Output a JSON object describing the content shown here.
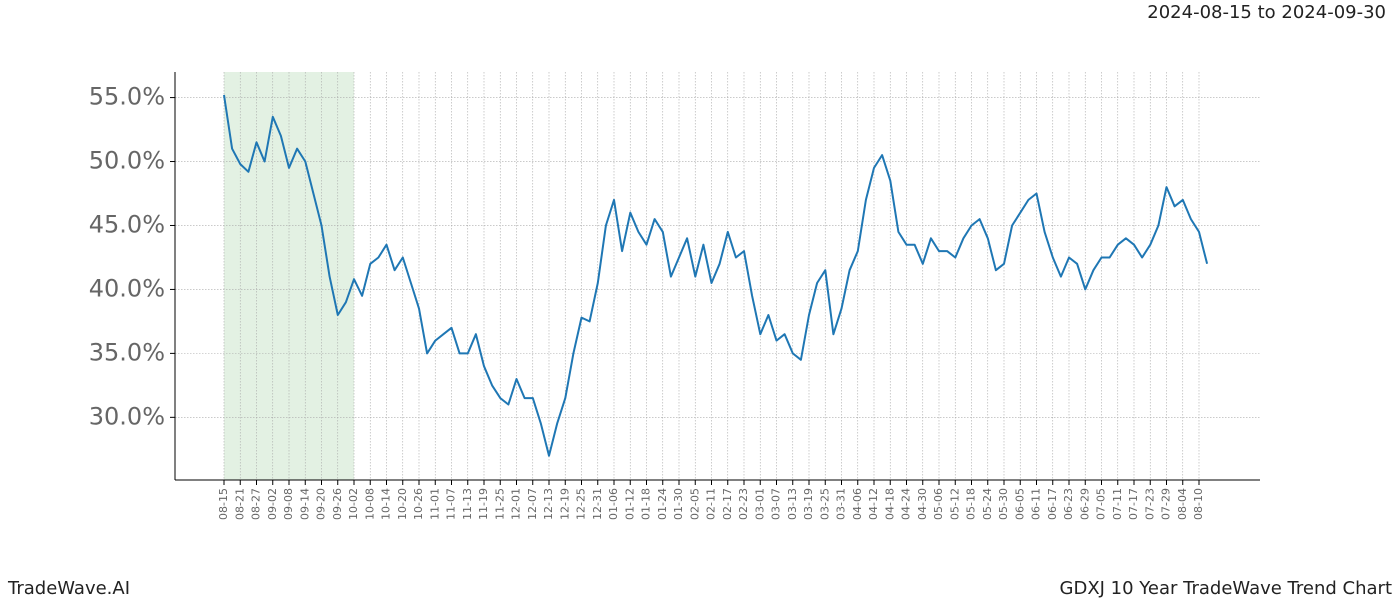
{
  "header": {
    "date_range": "2024-08-15 to 2024-09-30"
  },
  "footer": {
    "brand": "TradeWave.AI",
    "chart_name": "GDXJ 10 Year TradeWave Trend Chart"
  },
  "chart_data": {
    "type": "line",
    "categories": [
      "08-15",
      null,
      "08-21",
      null,
      "08-27",
      null,
      "09-02",
      null,
      "09-08",
      null,
      "09-14",
      null,
      "09-20",
      null,
      "09-26",
      null,
      "10-02",
      null,
      "10-08",
      null,
      "10-14",
      null,
      "10-20",
      null,
      "10-26",
      null,
      "11-01",
      null,
      "11-07",
      null,
      "11-13",
      null,
      "11-19",
      null,
      "11-25",
      null,
      "12-01",
      null,
      "12-07",
      null,
      "12-13",
      null,
      "12-19",
      null,
      "12-25",
      null,
      "12-31",
      null,
      "01-06",
      null,
      "01-12",
      null,
      "01-18",
      null,
      "01-24",
      null,
      "01-30",
      null,
      "02-05",
      null,
      "02-11",
      null,
      "02-17",
      null,
      "02-23",
      null,
      "03-01",
      null,
      "03-07",
      null,
      "03-13",
      null,
      "03-19",
      null,
      "03-25",
      null,
      "03-31",
      null,
      "04-06",
      null,
      "04-12",
      null,
      "04-18",
      null,
      "04-24",
      null,
      "04-30",
      null,
      "05-06",
      null,
      "05-12",
      null,
      "05-18",
      null,
      "05-24",
      null,
      "05-30",
      null,
      "06-05",
      null,
      "06-11",
      null,
      "06-17",
      null,
      "06-23",
      null,
      "06-29",
      null,
      "07-05",
      null,
      "07-11",
      null,
      "07-17",
      null,
      "07-23",
      null,
      "07-29",
      null,
      "08-04",
      null,
      "08-10",
      null
    ],
    "series": [
      {
        "color": "#1f77b4",
        "values": [
          55.2,
          51.0,
          49.8,
          49.2,
          51.5,
          50.0,
          53.5,
          52.0,
          49.5,
          51.0,
          50.0,
          47.5,
          45.0,
          41.0,
          38.0,
          39.0,
          40.8,
          39.5,
          42.0,
          42.5,
          43.5,
          41.5,
          42.5,
          40.5,
          38.5,
          35.0,
          36.0,
          36.5,
          37.0,
          35.0,
          35.0,
          36.5,
          34.0,
          32.5,
          31.5,
          31.0,
          33.0,
          31.5,
          31.5,
          29.5,
          27.0,
          29.5,
          31.5,
          35.0,
          37.8,
          37.5,
          40.5,
          45.0,
          47.0,
          43.0,
          46.0,
          44.5,
          43.5,
          45.5,
          44.5,
          41.0,
          42.5,
          44.0,
          41.0,
          43.5,
          40.5,
          42.0,
          44.5,
          42.5,
          43.0,
          39.5,
          36.5,
          38.0,
          36.0,
          36.5,
          35.0,
          34.5,
          38.0,
          40.5,
          41.5,
          36.5,
          38.5,
          41.5,
          43.0,
          47.0,
          49.5,
          50.5,
          48.5,
          44.5,
          43.5,
          43.5,
          42.0,
          44.0,
          43.0,
          43.0,
          42.5,
          44.0,
          45.0,
          45.5,
          44.0,
          41.5,
          42.0,
          45.0,
          46.0,
          47.0,
          47.5,
          44.5,
          42.5,
          41.0,
          42.5,
          42.0,
          40.0,
          41.5,
          42.5,
          42.5,
          43.5,
          44.0,
          43.5,
          42.5,
          43.5,
          45.0,
          48.0,
          46.5,
          47.0,
          45.5,
          44.5,
          42.0
        ]
      }
    ],
    "ylim": [
      25.1,
      57.0
    ],
    "yticks": [
      {
        "value": 30,
        "label": "30.0%"
      },
      {
        "value": 35,
        "label": "35.0%"
      },
      {
        "value": 40,
        "label": "40.0%"
      },
      {
        "value": 45,
        "label": "45.0%"
      },
      {
        "value": 50,
        "label": "50.0%"
      },
      {
        "value": 55,
        "label": "55.0%"
      }
    ],
    "grid": true,
    "highlight_range": [
      0,
      16
    ],
    "highlight_color": "#e3f1e3"
  }
}
